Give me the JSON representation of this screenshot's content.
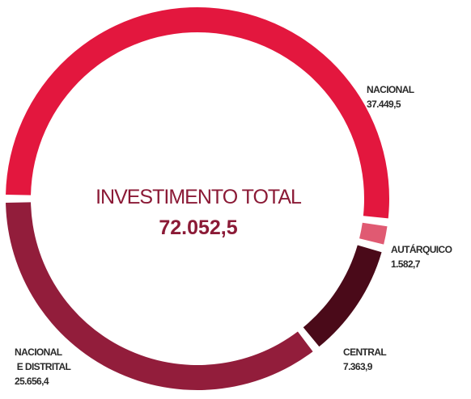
{
  "chart_data": {
    "type": "donut",
    "center_title": "INVESTIMENTO TOTAL",
    "total": {
      "value": 72052.5,
      "label": "72.052,5"
    },
    "categories": [
      "NACIONAL",
      "AUTÁRQUICO",
      "CENTRAL",
      "NACIONAL E DISTRITAL"
    ],
    "values": [
      37449.5,
      1582.7,
      7363.9,
      25656.4
    ],
    "value_labels": [
      "37.449,5",
      "1.582,7",
      "7.363,9",
      "25.656,4"
    ],
    "colors": [
      "#e3173e",
      "#e05a72",
      "#4a0a19",
      "#921d3b"
    ]
  }
}
